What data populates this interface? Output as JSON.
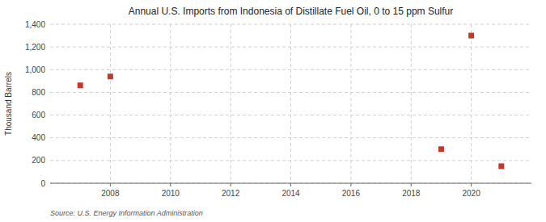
{
  "chart_data": {
    "type": "scatter",
    "title": "Annual U.S. Imports from Indonesia of Distillate Fuel Oil, 0 to 15 ppm Sulfur",
    "ylabel": "Thousand Barrels",
    "source": "Source: U.S. Energy Information Administration",
    "x": [
      2007,
      2008,
      2019,
      2020,
      2021
    ],
    "values": [
      862,
      940,
      300,
      1300,
      150
    ],
    "color": "#c0392b",
    "marker": "square",
    "xlim": [
      2006.0,
      2022.0
    ],
    "ylim": [
      0,
      1400
    ],
    "xticks": [
      2008,
      2010,
      2012,
      2014,
      2016,
      2018,
      2020
    ],
    "yticks": [
      0,
      200,
      400,
      600,
      800,
      {
        "value": 1000,
        "label": "1,000"
      },
      {
        "value": 1200,
        "label": "1,200"
      },
      {
        "value": 1400,
        "label": "1,400"
      }
    ],
    "grid": true
  }
}
